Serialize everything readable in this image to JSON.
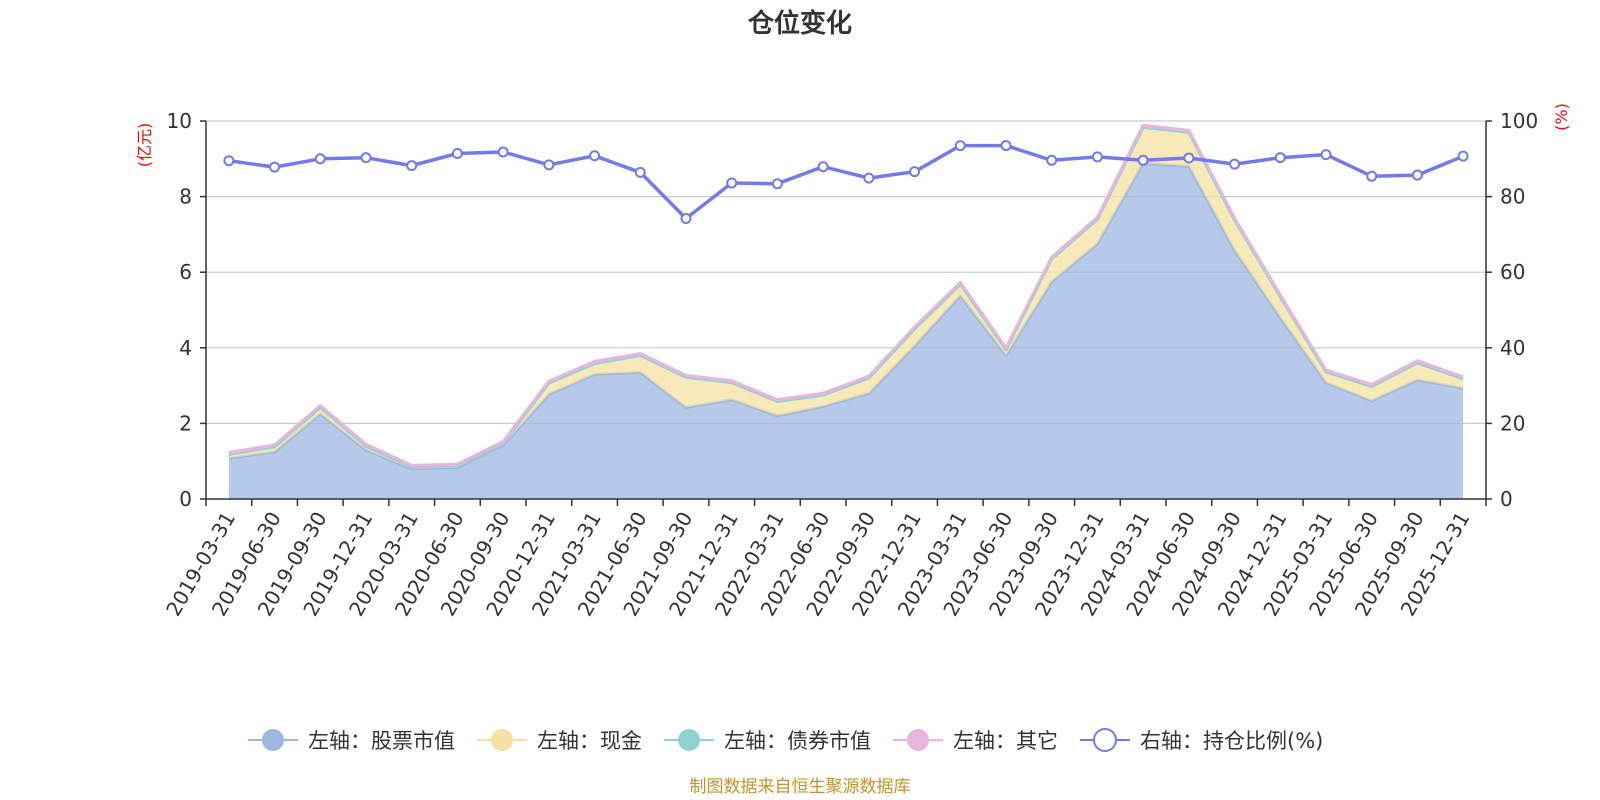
{
  "chart_data": {
    "type": "area",
    "title": "仓位变化",
    "y_left_label": "(亿元)",
    "y_right_label": "(%)",
    "y_left_range": [
      0,
      10
    ],
    "y_left_ticks": [
      "0",
      "2",
      "4",
      "6",
      "8",
      "10"
    ],
    "y_right_range": [
      0,
      100
    ],
    "y_right_ticks": [
      "0",
      "20",
      "40",
      "60",
      "80",
      "100"
    ],
    "categories": [
      "2019-03-31",
      "2019-06-30",
      "2019-09-30",
      "2019-12-31",
      "2020-03-31",
      "2020-06-30",
      "2020-09-30",
      "2020-12-31",
      "2021-03-31",
      "2021-06-30",
      "2021-09-30",
      "2021-12-31",
      "2022-03-31",
      "2022-06-30",
      "2022-09-30",
      "2022-12-31",
      "2023-03-31",
      "2023-06-30",
      "2023-09-30",
      "2023-12-31",
      "2024-03-31",
      "2024-06-30",
      "2024-09-30",
      "2024-12-31",
      "2025-03-31",
      "2025-06-30",
      "2025-09-30",
      "2025-12-31"
    ],
    "series": [
      {
        "name": "左轴：股票市值",
        "axis": "left",
        "stack": true,
        "color": "#9db7e0",
        "values": [
          1.08,
          1.25,
          2.25,
          1.3,
          0.8,
          0.83,
          1.42,
          2.77,
          3.3,
          3.35,
          2.42,
          2.63,
          2.2,
          2.45,
          2.8,
          4.05,
          5.38,
          3.8,
          5.75,
          6.75,
          8.88,
          8.8,
          6.58,
          4.8,
          3.08,
          2.6,
          3.15,
          2.93
        ]
      },
      {
        "name": "左轴：现金",
        "axis": "left",
        "stack": true,
        "color": "#f6e1a2",
        "values": [
          0.1,
          0.13,
          0.17,
          0.1,
          0.05,
          0.05,
          0.05,
          0.3,
          0.28,
          0.45,
          0.8,
          0.45,
          0.38,
          0.3,
          0.4,
          0.45,
          0.3,
          0.15,
          0.6,
          0.65,
          0.95,
          0.9,
          0.8,
          0.55,
          0.28,
          0.38,
          0.45,
          0.25
        ]
      },
      {
        "name": "左轴：债券市值",
        "axis": "left",
        "stack": true,
        "color": "#8fd3d3",
        "values": [
          0,
          0,
          0,
          0,
          0,
          0,
          0,
          0,
          0,
          0,
          0,
          0,
          0,
          0,
          0,
          0,
          0,
          0,
          0,
          0,
          0,
          0,
          0,
          0,
          0,
          0,
          0,
          0
        ]
      },
      {
        "name": "左轴：其它",
        "axis": "left",
        "stack": true,
        "color": "#e6b6dc",
        "values": [
          0.05,
          0.05,
          0.05,
          0.05,
          0.04,
          0.04,
          0.05,
          0.05,
          0.06,
          0.05,
          0.05,
          0.05,
          0.05,
          0.05,
          0.05,
          0.05,
          0.05,
          0.05,
          0.05,
          0.05,
          0.06,
          0.05,
          0.05,
          0.05,
          0.05,
          0.05,
          0.06,
          0.05
        ]
      },
      {
        "name": "右轴：持仓比例(%)",
        "axis": "right",
        "stack": false,
        "color": "#7479ec",
        "values": [
          89.5,
          87.8,
          90,
          90.3,
          88.2,
          91.4,
          91.8,
          88.4,
          90.8,
          86.4,
          74.2,
          83.6,
          83.4,
          87.9,
          84.9,
          86.6,
          93.5,
          93.5,
          89.6,
          90.5,
          89.6,
          90.2,
          88.6,
          90.3,
          91.1,
          85.4,
          85.7,
          90.7
        ]
      }
    ]
  },
  "footer": {
    "source": "制图数据来自恒生聚源数据库"
  }
}
